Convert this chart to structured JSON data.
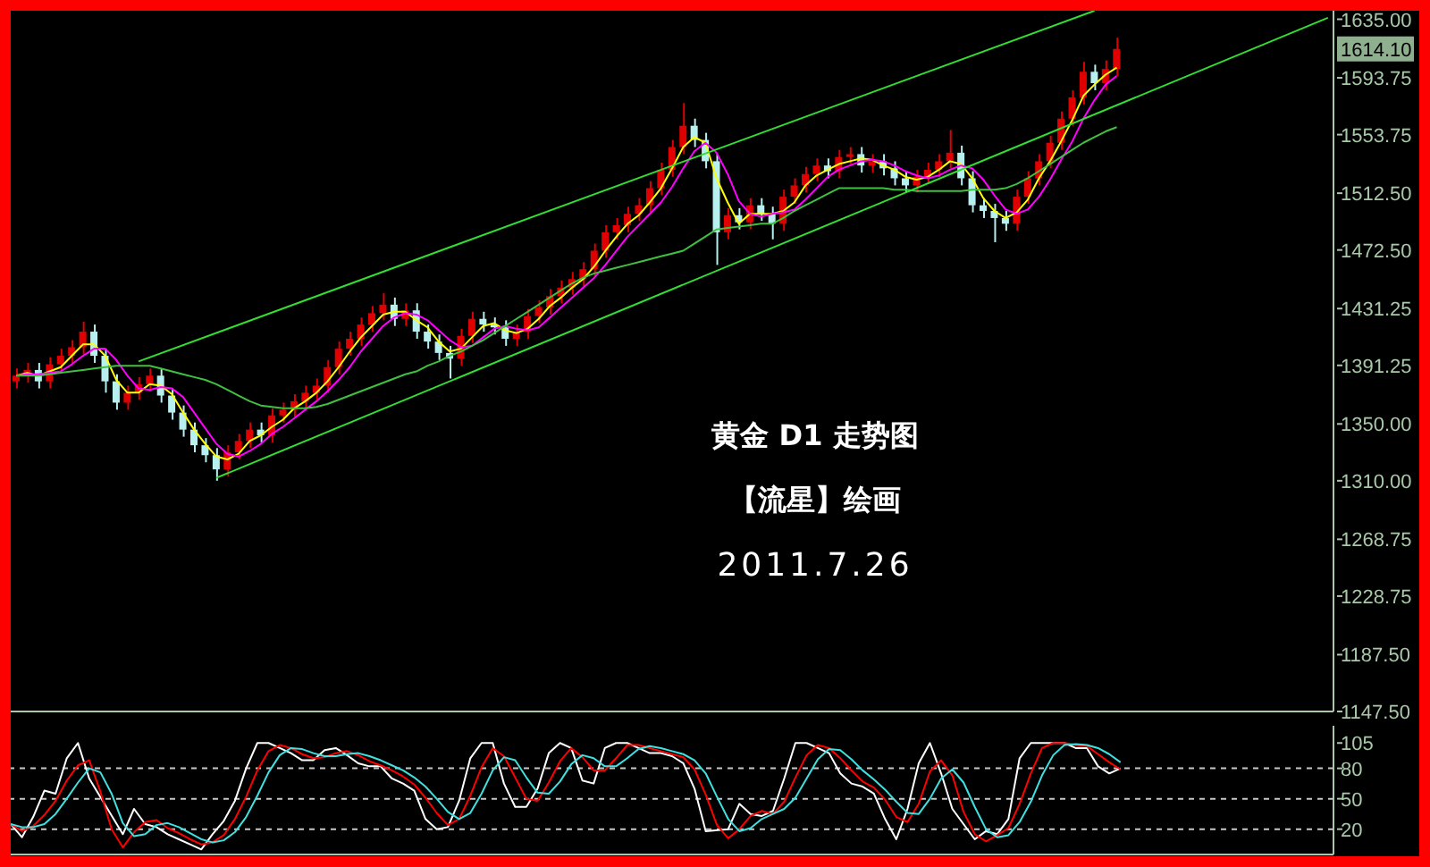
{
  "chart_data": [
    {
      "type": "candlestick",
      "title": "黄金 D1 走势图",
      "annotations": [
        "【流星】绘画",
        "2011.7.26"
      ],
      "tick_labels": "y",
      "marker": "none",
      "grid": false,
      "categories": [
        null,
        null,
        null,
        null,
        null,
        null,
        null,
        null,
        null,
        null,
        null,
        null,
        null,
        null,
        null,
        null,
        null,
        null,
        null,
        null,
        null,
        null,
        null,
        null,
        null,
        null,
        null,
        null,
        null,
        null,
        null,
        null,
        null,
        null,
        null,
        null,
        null,
        null,
        null,
        null,
        null,
        null,
        null,
        null,
        null,
        null,
        null,
        null,
        null,
        null,
        null,
        null,
        null,
        null,
        null,
        null,
        null,
        null,
        null,
        null,
        null,
        null,
        null,
        null,
        null,
        null,
        null,
        null,
        null,
        null,
        null,
        null,
        null,
        null,
        null,
        null,
        null,
        null,
        null,
        null,
        null,
        null,
        null,
        null,
        null,
        null,
        null,
        null,
        null,
        null,
        null,
        null,
        null,
        null,
        null,
        null,
        null,
        null,
        null,
        null,
        null,
        null,
        null,
        null,
        null,
        null,
        null,
        null,
        null,
        null,
        null,
        null,
        null,
        null,
        null,
        null,
        null,
        null,
        null
      ],
      "ylim": [
        1147.5,
        1641
      ],
      "yticks": [
        {
          "value": 1147.5,
          "label": "1147.50"
        },
        {
          "value": 1187.5,
          "label": "1187.50"
        },
        {
          "value": 1228.75,
          "label": "1228.75"
        },
        {
          "value": 1268.75,
          "label": "1268.75"
        },
        {
          "value": 1310,
          "label": "1310.00"
        },
        {
          "value": 1350,
          "label": "1350.00"
        },
        {
          "value": 1391.25,
          "label": "1391.25"
        },
        {
          "value": 1431.25,
          "label": "1431.25"
        },
        {
          "value": 1472.5,
          "label": "1472.50"
        },
        {
          "value": 1512.5,
          "label": "1512.50"
        },
        {
          "value": 1553.75,
          "label": "1553.75"
        },
        {
          "value": 1593.75,
          "label": "1593.75"
        },
        {
          "value": 1614.1,
          "label": "1614.10"
        },
        {
          "value": 1635,
          "label": "1635.00"
        }
      ],
      "ohlc": [
        [
          1380,
          1389,
          1375,
          1384
        ],
        [
          1384,
          1393,
          1379,
          1388
        ],
        [
          1388,
          1393,
          1375,
          1380
        ],
        [
          1380,
          1397,
          1375,
          1392
        ],
        [
          1392,
          1403,
          1387,
          1398
        ],
        [
          1398,
          1409,
          1393,
          1404
        ],
        [
          1404,
          1422,
          1399,
          1415
        ],
        [
          1415,
          1420,
          1393,
          1398
        ],
        [
          1398,
          1403,
          1372,
          1380
        ],
        [
          1380,
          1385,
          1360,
          1365
        ],
        [
          1365,
          1377,
          1360,
          1372
        ],
        [
          1372,
          1383,
          1367,
          1378
        ],
        [
          1378,
          1389,
          1373,
          1384
        ],
        [
          1384,
          1389,
          1365,
          1370
        ],
        [
          1370,
          1375,
          1353,
          1358
        ],
        [
          1358,
          1363,
          1341,
          1346
        ],
        [
          1346,
          1351,
          1330,
          1335
        ],
        [
          1335,
          1340,
          1323,
          1328
        ],
        [
          1328,
          1333,
          1310,
          1318
        ],
        [
          1318,
          1335,
          1313,
          1330
        ],
        [
          1330,
          1343,
          1325,
          1338
        ],
        [
          1338,
          1351,
          1333,
          1346
        ],
        [
          1346,
          1351,
          1337,
          1342
        ],
        [
          1342,
          1361,
          1337,
          1356
        ],
        [
          1356,
          1365,
          1351,
          1360
        ],
        [
          1360,
          1371,
          1355,
          1366
        ],
        [
          1366,
          1377,
          1361,
          1372
        ],
        [
          1372,
          1382,
          1367,
          1377
        ],
        [
          1377,
          1395,
          1372,
          1390
        ],
        [
          1390,
          1408,
          1385,
          1403
        ],
        [
          1403,
          1415,
          1398,
          1410
        ],
        [
          1410,
          1425,
          1405,
          1420
        ],
        [
          1420,
          1433,
          1415,
          1428
        ],
        [
          1428,
          1442,
          1423,
          1434
        ],
        [
          1434,
          1439,
          1419,
          1424
        ],
        [
          1424,
          1435,
          1419,
          1430
        ],
        [
          1430,
          1435,
          1410,
          1415
        ],
        [
          1415,
          1420,
          1403,
          1408
        ],
        [
          1408,
          1413,
          1395,
          1400
        ],
        [
          1400,
          1405,
          1382,
          1396
        ],
        [
          1396,
          1417,
          1391,
          1412
        ],
        [
          1412,
          1429,
          1407,
          1424
        ],
        [
          1424,
          1429,
          1415,
          1420
        ],
        [
          1420,
          1425,
          1413,
          1418
        ],
        [
          1418,
          1423,
          1405,
          1410
        ],
        [
          1410,
          1420,
          1405,
          1415
        ],
        [
          1415,
          1431,
          1410,
          1426
        ],
        [
          1426,
          1437,
          1421,
          1432
        ],
        [
          1432,
          1445,
          1427,
          1440
        ],
        [
          1440,
          1451,
          1435,
          1446
        ],
        [
          1446,
          1457,
          1441,
          1452
        ],
        [
          1452,
          1464,
          1447,
          1459
        ],
        [
          1459,
          1477,
          1454,
          1472
        ],
        [
          1472,
          1490,
          1467,
          1485
        ],
        [
          1485,
          1495,
          1480,
          1490
        ],
        [
          1490,
          1503,
          1485,
          1498
        ],
        [
          1498,
          1509,
          1493,
          1504
        ],
        [
          1504,
          1521,
          1499,
          1516
        ],
        [
          1516,
          1534,
          1511,
          1529
        ],
        [
          1529,
          1550,
          1524,
          1545
        ],
        [
          1545,
          1576,
          1540,
          1560
        ],
        [
          1560,
          1565,
          1545,
          1550
        ],
        [
          1550,
          1555,
          1530,
          1535
        ],
        [
          1535,
          1540,
          1462,
          1485
        ],
        [
          1485,
          1502,
          1480,
          1497
        ],
        [
          1497,
          1502,
          1487,
          1492
        ],
        [
          1492,
          1509,
          1487,
          1504
        ],
        [
          1504,
          1509,
          1493,
          1498
        ],
        [
          1498,
          1503,
          1480,
          1491
        ],
        [
          1491,
          1515,
          1486,
          1510
        ],
        [
          1510,
          1523,
          1505,
          1518
        ],
        [
          1518,
          1531,
          1513,
          1526
        ],
        [
          1526,
          1537,
          1521,
          1532
        ],
        [
          1532,
          1537,
          1523,
          1528
        ],
        [
          1528,
          1543,
          1523,
          1538
        ],
        [
          1538,
          1545,
          1533,
          1540
        ],
        [
          1540,
          1545,
          1527,
          1532
        ],
        [
          1532,
          1540,
          1527,
          1535
        ],
        [
          1535,
          1540,
          1525,
          1530
        ],
        [
          1530,
          1535,
          1518,
          1523
        ],
        [
          1523,
          1528,
          1513,
          1518
        ],
        [
          1518,
          1529,
          1513,
          1524
        ],
        [
          1524,
          1534,
          1519,
          1529
        ],
        [
          1529,
          1540,
          1524,
          1535
        ],
        [
          1535,
          1557,
          1530,
          1541
        ],
        [
          1541,
          1546,
          1518,
          1523
        ],
        [
          1523,
          1528,
          1499,
          1504
        ],
        [
          1504,
          1509,
          1495,
          1500
        ],
        [
          1500,
          1505,
          1478,
          1495
        ],
        [
          1495,
          1500,
          1486,
          1491
        ],
        [
          1491,
          1515,
          1486,
          1510
        ],
        [
          1510,
          1528,
          1505,
          1523
        ],
        [
          1523,
          1540,
          1518,
          1535
        ],
        [
          1535,
          1553,
          1530,
          1548
        ],
        [
          1548,
          1570,
          1543,
          1565
        ],
        [
          1565,
          1585,
          1560,
          1580
        ],
        [
          1580,
          1605,
          1575,
          1598
        ],
        [
          1598,
          1603,
          1585,
          1590
        ],
        [
          1590,
          1606,
          1585,
          1600
        ],
        [
          1600,
          1622,
          1595,
          1614.1
        ],
        null,
        null,
        null,
        null,
        null,
        null,
        null,
        null,
        null,
        null,
        null,
        null,
        null,
        null,
        null,
        null,
        null,
        null,
        null
      ],
      "series": [
        {
          "type": "line",
          "color": "#ffff00",
          "values": [
            1384,
            1386,
            1384,
            1387,
            1390,
            1398,
            1406,
            1406,
            1398,
            1381,
            1372,
            1372,
            1378,
            1377,
            1371,
            1358,
            1346,
            1336,
            1327,
            1325,
            1329,
            1338,
            1342,
            1348,
            1353,
            1361,
            1366,
            1372,
            1380,
            1390,
            1401,
            1411,
            1419,
            1427,
            1429,
            1429,
            1423,
            1418,
            1408,
            1401,
            1403,
            1411,
            1419,
            1421,
            1416,
            1414,
            1417,
            1424,
            1433,
            1439,
            1446,
            1452,
            1461,
            1472,
            1482,
            1491,
            1497,
            1506,
            1516,
            1530,
            1545,
            1552,
            1548,
            1523,
            1506,
            1491,
            1498,
            1498,
            1498,
            1500,
            1506,
            1518,
            1525,
            1529,
            1533,
            1535,
            1537,
            1536,
            1532,
            1529,
            1524,
            1522,
            1524,
            1529,
            1535,
            1533,
            1523,
            1509,
            1500,
            1495,
            1499,
            1508,
            1523,
            1535,
            1549,
            1564,
            1581,
            1589,
            1596,
            1601,
            null,
            null,
            null,
            null,
            null,
            null,
            null,
            null,
            null,
            null,
            null,
            null,
            null,
            null,
            null,
            null,
            null,
            null,
            null
          ]
        },
        {
          "type": "line",
          "color": "#ff00ff",
          "values": [
            1384,
            1385,
            1385,
            1386,
            1387,
            1392,
            1398,
            1403,
            1403,
            1395,
            1384,
            1375,
            1374,
            1376,
            1375,
            1369,
            1358,
            1347,
            1336,
            1329,
            1327,
            1331,
            1336,
            1343,
            1348,
            1354,
            1360,
            1366,
            1373,
            1381,
            1390,
            1401,
            1410,
            1419,
            1425,
            1428,
            1427,
            1423,
            1416,
            1409,
            1404,
            1405,
            1411,
            1417,
            1419,
            1417,
            1416,
            1418,
            1425,
            1432,
            1439,
            1446,
            1453,
            1462,
            1472,
            1482,
            1490,
            1498,
            1506,
            1517,
            1530,
            1542,
            1548,
            1541,
            1526,
            1507,
            1498,
            1496,
            1498,
            1499,
            1501,
            1508,
            1516,
            1524,
            1529,
            1532,
            1535,
            1536,
            1535,
            1532,
            1528,
            1525,
            1523,
            1525,
            1529,
            1532,
            1530,
            1522,
            1511,
            1501,
            1498,
            1501,
            1510,
            1522,
            1536,
            1549,
            1565,
            1578,
            1589,
            1595,
            null,
            null,
            null,
            null,
            null,
            null,
            null,
            null,
            null,
            null,
            null,
            null,
            null,
            null,
            null,
            null,
            null,
            null,
            null
          ]
        },
        {
          "type": "line",
          "color": "#40c040",
          "values": [
            1384,
            1384,
            1384,
            1385,
            1386,
            1387,
            1388,
            1389,
            1390,
            1391,
            1391,
            1391,
            1391,
            1389,
            1387,
            1385,
            1383,
            1381,
            1378,
            1374,
            1370,
            1366,
            1363,
            1362,
            1361,
            1361,
            1361,
            1362,
            1364,
            1367,
            1370,
            1373,
            1376,
            1379,
            1382,
            1385,
            1387,
            1391,
            1394,
            1398,
            1401,
            1405,
            1409,
            1414,
            1419,
            1424,
            1429,
            1434,
            1439,
            1444,
            1449,
            1453,
            1456,
            1458,
            1460,
            1462,
            1464,
            1466,
            1468,
            1470,
            1472,
            1477,
            1482,
            1487,
            1488,
            1489,
            1490,
            1491,
            1491,
            1495,
            1500,
            1504,
            1508,
            1512,
            1516,
            1516,
            1516,
            1516,
            1516,
            1515,
            1515,
            1514,
            1514,
            1514,
            1514,
            1514,
            1515,
            1515,
            1515,
            1516,
            1519,
            1523,
            1528,
            1533,
            1538,
            1543,
            1548,
            1552,
            1556,
            1559,
            null,
            null,
            null,
            null,
            null,
            null,
            null,
            null,
            null,
            null,
            null,
            null,
            null,
            null,
            null,
            null,
            null,
            null,
            null
          ]
        },
        {
          "type": "line",
          "color": "#33dd33",
          "values": [
            null,
            null,
            null,
            null,
            null,
            null,
            null,
            null,
            null,
            null,
            null,
            1394,
            null,
            null,
            null,
            null,
            null,
            null,
            null,
            null,
            null,
            null,
            null,
            null,
            null,
            null,
            null,
            null,
            null,
            null,
            null,
            null,
            null,
            null,
            null,
            null,
            null,
            null,
            null,
            null,
            null,
            null,
            null,
            null,
            null,
            null,
            null,
            null,
            null,
            null,
            null,
            null,
            null,
            null,
            null,
            null,
            null,
            null,
            null,
            null,
            null,
            null,
            null,
            null,
            null,
            null,
            null,
            null,
            null,
            null,
            null,
            null,
            null,
            null,
            null,
            null,
            null,
            null,
            null,
            null,
            null,
            null,
            null,
            null,
            null,
            null,
            null,
            null,
            null,
            null,
            null,
            null,
            null,
            null,
            null,
            null,
            null,
            1641,
            null,
            null,
            null,
            null,
            null,
            null,
            null,
            null,
            null,
            null,
            null,
            null,
            null,
            null,
            null,
            null,
            null,
            null,
            null,
            null,
            null
          ]
        },
        {
          "type": "line",
          "color": "#33dd33",
          "values": [
            null,
            null,
            null,
            null,
            null,
            null,
            null,
            null,
            null,
            null,
            null,
            null,
            null,
            null,
            null,
            null,
            null,
            null,
            1312,
            null,
            null,
            null,
            null,
            null,
            null,
            null,
            null,
            null,
            null,
            null,
            null,
            null,
            null,
            null,
            null,
            null,
            null,
            null,
            null,
            null,
            null,
            null,
            null,
            null,
            null,
            null,
            null,
            null,
            null,
            null,
            null,
            null,
            null,
            null,
            null,
            null,
            null,
            null,
            null,
            null,
            null,
            null,
            null,
            null,
            null,
            null,
            null,
            null,
            null,
            null,
            null,
            null,
            null,
            null,
            null,
            null,
            null,
            null,
            null,
            null,
            null,
            null,
            null,
            null,
            null,
            null,
            null,
            null,
            null,
            null,
            null,
            null,
            null,
            null,
            null,
            null,
            null,
            null,
            null,
            null,
            null,
            null,
            null,
            null,
            null,
            null,
            null,
            null,
            null,
            null,
            null,
            null,
            null,
            null,
            null,
            null,
            null,
            null,
            1636
          ]
        }
      ]
    },
    {
      "type": "line",
      "tick_labels": "y",
      "marker": "none",
      "grid": false,
      "categories": [
        null,
        null,
        null,
        null,
        null,
        null,
        null,
        null,
        null,
        null,
        null,
        null,
        null,
        null,
        null,
        null,
        null,
        null,
        null,
        null,
        null,
        null,
        null,
        null,
        null,
        null,
        null,
        null,
        null,
        null,
        null,
        null,
        null,
        null,
        null,
        null,
        null,
        null,
        null,
        null,
        null,
        null,
        null,
        null,
        null,
        null,
        null,
        null,
        null,
        null,
        null,
        null,
        null,
        null,
        null,
        null,
        null,
        null,
        null,
        null,
        null,
        null,
        null,
        null,
        null,
        null,
        null,
        null,
        null,
        null,
        null,
        null,
        null,
        null,
        null,
        null,
        null,
        null,
        null,
        null,
        null,
        null,
        null,
        null,
        null,
        null,
        null,
        null,
        null,
        null,
        null,
        null,
        null,
        null,
        null,
        null,
        null,
        null,
        null,
        null,
        null,
        null,
        null,
        null,
        null,
        null,
        null,
        null,
        null,
        null,
        null,
        null,
        null,
        null,
        null,
        null,
        null,
        null,
        null
      ],
      "ylim": [
        -5,
        122
      ],
      "yticks": [
        20,
        50,
        80,
        105
      ],
      "ref_lines": [
        {
          "axis": "y",
          "value": 80,
          "color": "#c8c8c8",
          "line_style": "dashed"
        },
        {
          "axis": "y",
          "value": 50,
          "color": "#c8c8c8",
          "line_style": "dashed"
        },
        {
          "axis": "y",
          "value": 20,
          "color": "#c8c8c8",
          "line_style": "dashed"
        }
      ],
      "series": [
        {
          "color": "#ffffff",
          "values": [
            25,
            12,
            32,
            58,
            55,
            90,
            105,
            70,
            null,
            null,
            15,
            40,
            25,
            22,
            15,
            10,
            5,
            0,
            15,
            28,
            48,
            80,
            105,
            105,
            100,
            95,
            88,
            88,
            98,
            100,
            93,
            85,
            82,
            82,
            70,
            65,
            58,
            30,
            20,
            22,
            48,
            90,
            105,
            105,
            65,
            42,
            42,
            60,
            95,
            105,
            100,
            68,
            65,
            100,
            105,
            105,
            100,
            95,
            95,
            92,
            85,
            60,
            18,
            null,
            20,
            45,
            35,
            33,
            38,
            70,
            105,
            105,
            100,
            95,
            75,
            65,
            62,
            55,
            30,
            10,
            40,
            85,
            105,
            75,
            40,
            null,
            10,
            18,
            15,
            30,
            90,
            105,
            105,
            105,
            105,
            100,
            100,
            82,
            75,
            80,
            null,
            null,
            null,
            null,
            null,
            null,
            null,
            null,
            null,
            null,
            null,
            null,
            null,
            null,
            null,
            null,
            null,
            null,
            null
          ]
        },
        {
          "color": "#ff0000",
          "values": [
            25,
            18,
            23,
            34,
            48,
            68,
            83,
            88,
            57,
            20,
            2,
            17,
            27,
            29,
            21,
            16,
            10,
            5,
            7,
            14,
            30,
            52,
            78,
            97,
            103,
            100,
            94,
            90,
            91,
            95,
            97,
            93,
            87,
            83,
            78,
            72,
            64,
            51,
            36,
            24,
            30,
            53,
            81,
            100,
            92,
            71,
            50,
            48,
            66,
            87,
            100,
            91,
            78,
            78,
            90,
            103,
            103,
            100,
            97,
            94,
            91,
            79,
            54,
            24,
            11,
            20,
            33,
            38,
            35,
            47,
            71,
            93,
            103,
            100,
            90,
            78,
            67,
            61,
            49,
            32,
            27,
            45,
            77,
            88,
            73,
            37,
            15,
            8,
            14,
            21,
            45,
            75,
            100,
            105,
            105,
            103,
            102,
            94,
            86,
            79,
            null,
            null,
            null,
            null,
            null,
            null,
            null,
            null,
            null,
            null,
            null,
            null,
            null,
            null,
            null,
            null,
            null,
            null,
            null
          ]
        },
        {
          "color": "#40e0e0",
          "values": [
            25,
            22,
            22,
            25,
            35,
            50,
            66,
            80,
            76,
            55,
            26,
            13,
            15,
            24,
            26,
            22,
            16,
            10,
            7,
            9,
            17,
            32,
            53,
            76,
            93,
            100,
            99,
            95,
            92,
            92,
            94,
            95,
            92,
            88,
            83,
            78,
            71,
            62,
            50,
            37,
            30,
            36,
            55,
            78,
            91,
            88,
            71,
            56,
            55,
            67,
            84,
            93,
            90,
            82,
            82,
            90,
            99,
            102,
            100,
            97,
            94,
            88,
            75,
            52,
            30,
            18,
            21,
            30,
            35,
            40,
            51,
            70,
            89,
            99,
            98,
            89,
            78,
            69,
            59,
            47,
            36,
            35,
            50,
            70,
            79,
            66,
            42,
            20,
            12,
            14,
            27,
            47,
            73,
            93,
            103,
            104,
            103,
            100,
            94,
            86,
            null,
            null,
            null,
            null,
            null,
            null,
            null,
            null,
            null,
            null,
            null,
            null,
            null,
            null,
            null,
            null,
            null,
            null,
            null
          ]
        }
      ]
    }
  ]
}
